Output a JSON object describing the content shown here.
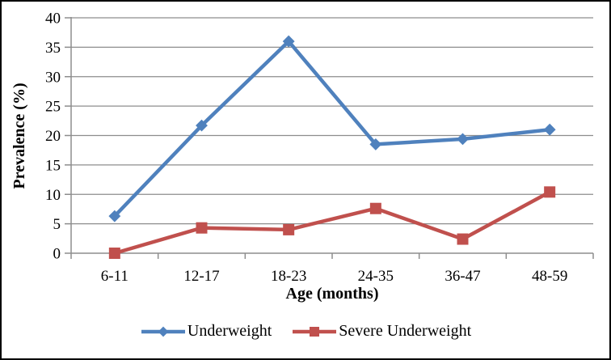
{
  "figure": {
    "background": "#ffffff",
    "border_color": "#000000"
  },
  "chart_data": {
    "type": "line",
    "title": "",
    "categories": [
      "6-11",
      "12-17",
      "18-23",
      "24-35",
      "36-47",
      "48-59"
    ],
    "series": [
      {
        "name": "Underweight",
        "color": "#4F81BD",
        "marker": "diamond",
        "values": [
          6.3,
          21.7,
          36.0,
          18.5,
          19.4,
          21.0
        ]
      },
      {
        "name": "Severe Underweight",
        "color": "#C0504D",
        "marker": "square",
        "values": [
          0,
          4.3,
          4.0,
          7.6,
          2.4,
          10.4
        ]
      }
    ],
    "xlabel": "Age (months)",
    "ylabel": "Prevalence (%)",
    "ylim": [
      0,
      40
    ],
    "ytick_step": 5,
    "yticks": [
      0,
      5,
      10,
      15,
      20,
      25,
      30,
      35,
      40
    ],
    "grid": true,
    "legend_position": "bottom",
    "colors": {
      "gridline": "#8d8d8d",
      "axis": "#8d8d8d",
      "tick_label": "#000000"
    }
  }
}
